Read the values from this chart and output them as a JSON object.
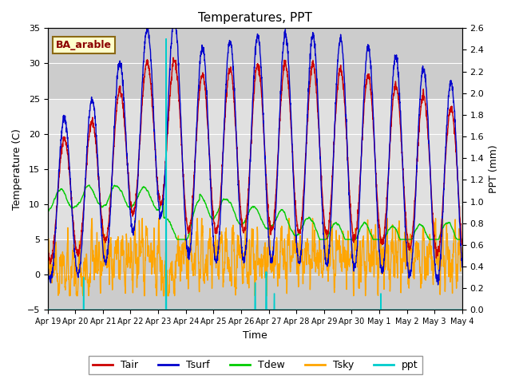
{
  "title": "Temperatures, PPT",
  "xlabel": "Time",
  "ylabel_left": "Temperature (C)",
  "ylabel_right": "PPT (mm)",
  "annotation": "BA_arable",
  "ylim_left": [
    -5,
    35
  ],
  "ylim_right": [
    0.0,
    2.6
  ],
  "yticks_left": [
    -5,
    0,
    5,
    10,
    15,
    20,
    25,
    30,
    35
  ],
  "yticks_right": [
    0.0,
    0.2,
    0.4,
    0.6,
    0.8,
    1.0,
    1.2,
    1.4,
    1.6,
    1.8,
    2.0,
    2.2,
    2.4,
    2.6
  ],
  "xtick_labels": [
    "Apr 19",
    "Apr 20",
    "Apr 21",
    "Apr 22",
    "Apr 23",
    "Apr 24",
    "Apr 25",
    "Apr 26",
    "Apr 27",
    "Apr 28",
    "Apr 29",
    "Apr 30",
    "May 1",
    "May 2",
    "May 3",
    "May 4"
  ],
  "colors": {
    "Tair": "#cc0000",
    "Tsurf": "#0000cc",
    "Tdew": "#00cc00",
    "Tsky": "#ffa500",
    "ppt": "#00cccc"
  },
  "legend_labels": [
    "Tair",
    "Tsurf",
    "Tdew",
    "Tsky",
    "ppt"
  ],
  "bg_light": "#e8e8e8",
  "bg_dark": "#d8d8d8",
  "grid_color": "#ffffff"
}
